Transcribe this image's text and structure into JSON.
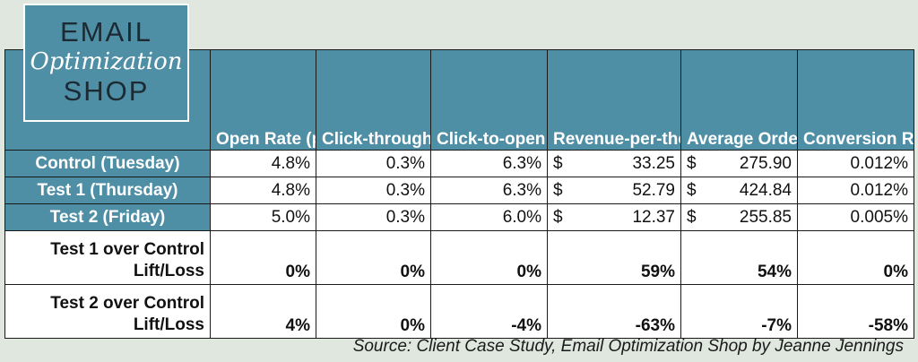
{
  "logo": {
    "line1": "EMAIL",
    "line2": "Optimization",
    "line3": "SHOP"
  },
  "columns": [
    "Open Rate (pre-MPP)",
    "Click-through Rate (CTR)",
    "Click-to-open Rate (CTOR)",
    "Revenue-per-thousand-emails-sent (RPME)",
    "Average Order Value (AOV)",
    "Conversion Rate from Emails Sent (CR)"
  ],
  "rows": [
    {
      "label": "Control (Tuesday)",
      "open": "4.8%",
      "ctr": "0.3%",
      "ctor": "6.3%",
      "rpme": "33.25",
      "aov": "275.90",
      "cr": "0.012%"
    },
    {
      "label": "Test 1 (Thursday)",
      "open": "4.8%",
      "ctr": "0.3%",
      "ctor": "6.3%",
      "rpme": "52.79",
      "aov": "424.84",
      "cr": "0.012%"
    },
    {
      "label": "Test 2 (Friday)",
      "open": "5.0%",
      "ctr": "0.3%",
      "ctor": "6.0%",
      "rpme": "12.37",
      "aov": "255.85",
      "cr": "0.005%"
    }
  ],
  "currency_symbol": "$",
  "lifts": [
    {
      "label_line1": "Test 1 over Control",
      "label_line2": "Lift/Loss",
      "open": "0%",
      "ctr": "0%",
      "ctor": "0%",
      "rpme": "59%",
      "aov": "54%",
      "cr": "0%"
    },
    {
      "label_line1": "Test 2 over Control",
      "label_line2": "Lift/Loss",
      "open": "4%",
      "ctr": "0%",
      "ctor": "-4%",
      "rpme": "-63%",
      "aov": "-7%",
      "cr": "-58%"
    }
  ],
  "source": "Source: Client Case Study, Email Optimization Shop by Jeanne Jennings",
  "colors": {
    "header_bg": "#4f8fa6",
    "page_bg": "#dfe7df"
  }
}
